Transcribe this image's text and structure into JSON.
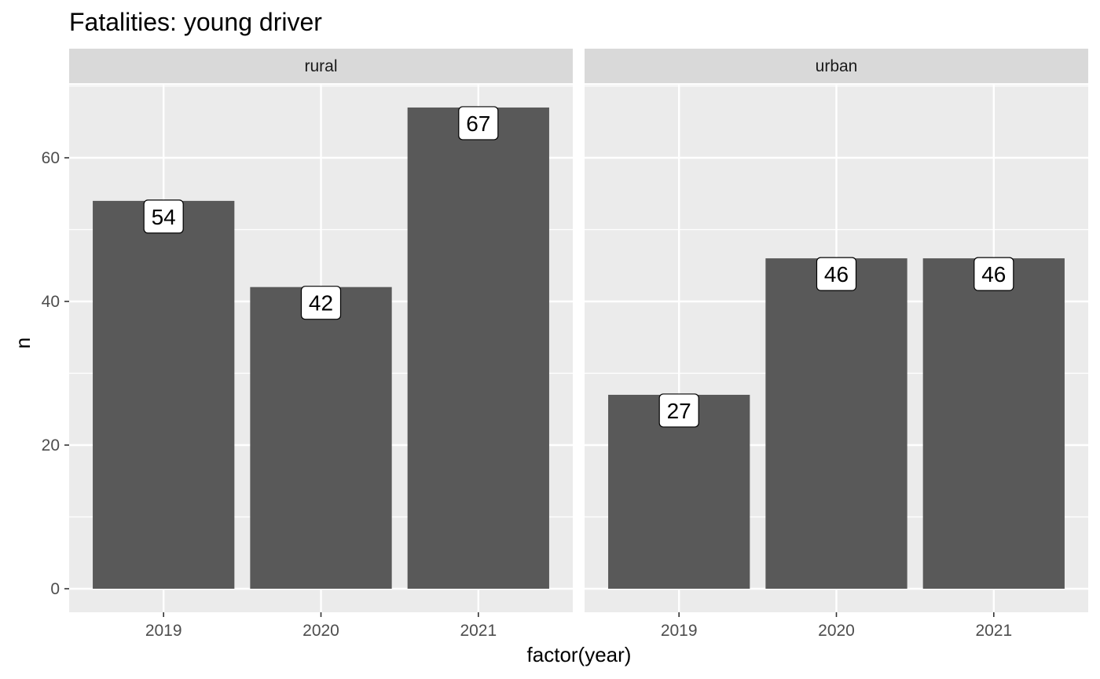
{
  "chart_data": {
    "type": "bar",
    "title": "Fatalities: young driver",
    "xlabel": "factor(year)",
    "ylabel": "n",
    "ylim": [
      0,
      70
    ],
    "yticks": [
      0,
      20,
      40,
      60
    ],
    "categories": [
      "2019",
      "2020",
      "2021"
    ],
    "grid": true,
    "facets": [
      {
        "name": "rural",
        "values": [
          54,
          42,
          67
        ]
      },
      {
        "name": "urban",
        "values": [
          27,
          46,
          46
        ]
      }
    ],
    "colors": {
      "bar": "#595959",
      "panel": "#ebebeb",
      "strip": "#d9d9d9",
      "grid": "#ffffff"
    }
  }
}
